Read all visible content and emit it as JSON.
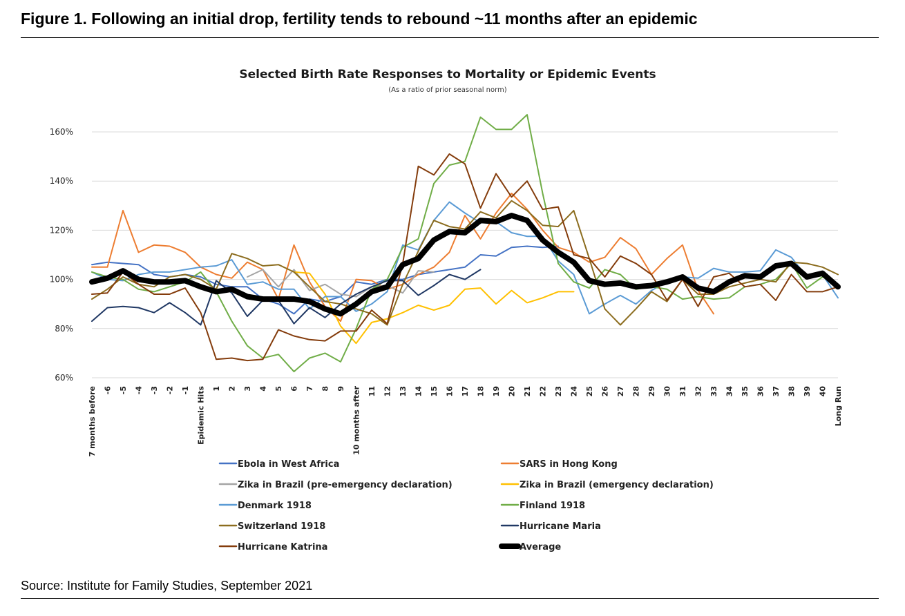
{
  "figure_title": "Figure 1. Following an initial drop, fertility tends to rebound ~11 months after an epidemic",
  "source": "Source: Institute for Family Studies, September 2021",
  "chart_data": {
    "type": "line",
    "title": "Selected Birth Rate Responses to Mortality or Epidemic Events",
    "subtitle": "(As a ratio of prior seasonal norm)",
    "xlabel": "",
    "ylabel": "",
    "ylim": [
      60,
      160
    ],
    "yticks": [
      "60%",
      "80%",
      "100%",
      "120%",
      "140%",
      "160%"
    ],
    "grid": true,
    "legend_position": "bottom",
    "categories": [
      "7 months before",
      "-6",
      "-5",
      "-4",
      "-3",
      "-2",
      "-1",
      "Epidemic Hits",
      "1",
      "2",
      "3",
      "4",
      "5",
      "6",
      "7",
      "8",
      "9",
      "10 months after",
      "11",
      "12",
      "13",
      "14",
      "15",
      "16",
      "17",
      "18",
      "19",
      "20",
      "21",
      "22",
      "23",
      "24",
      "25",
      "26",
      "27",
      "28",
      "29",
      "30",
      "31",
      "32",
      "33",
      "34",
      "35",
      "36",
      "37",
      "38",
      "39",
      "40",
      "Long Run"
    ],
    "series": [
      {
        "name": "Ebola in West Africa",
        "color": "#4472C4",
        "width": 2,
        "values": [
          106,
          107,
          106.5,
          106,
          102,
          101,
          102,
          101,
          98,
          97,
          97,
          92,
          90,
          86,
          92,
          91,
          93,
          99,
          98,
          100,
          100,
          102,
          103,
          104,
          105,
          110,
          109.5,
          113,
          113.5,
          113,
          113.5,
          null,
          null,
          null,
          null,
          null,
          null,
          null,
          null,
          null,
          null,
          null,
          null,
          null,
          null,
          null,
          null,
          null,
          null
        ]
      },
      {
        "name": "SARS in Hong Kong",
        "color": "#ED7D31",
        "width": 2,
        "values": [
          105,
          105,
          128,
          111,
          114,
          113.5,
          111,
          105,
          102,
          100.5,
          107,
          104,
          92,
          114,
          99,
          89,
          83,
          100,
          99.5,
          96,
          98,
          102,
          105,
          111,
          126,
          116.5,
          127,
          135,
          128.5,
          120,
          113,
          111,
          107,
          109,
          117,
          112.5,
          102,
          108.5,
          114,
          95.5,
          86,
          null,
          null,
          null,
          null,
          null,
          null,
          null,
          null
        ]
      },
      {
        "name": "Zika in Brazil  (pre-emergency declaration)",
        "color": "#A5A5A5",
        "width": 2,
        "values": [
          null,
          null,
          null,
          null,
          null,
          null,
          null,
          null,
          null,
          null,
          101,
          104,
          97,
          104,
          95.5,
          98,
          94,
          93,
          97,
          97.5,
          94.5,
          103.5,
          103,
          null,
          null,
          null,
          null,
          null,
          null,
          null,
          null,
          null,
          null,
          null,
          null,
          null,
          null,
          null,
          null,
          null,
          null,
          null,
          null,
          null,
          null,
          null,
          null,
          null,
          null
        ]
      },
      {
        "name": "Zika in Brazil (emergency declaration)",
        "color": "#FFC000",
        "width": 2,
        "values": [
          null,
          null,
          null,
          null,
          null,
          null,
          null,
          null,
          null,
          null,
          null,
          null,
          null,
          103,
          102.5,
          94,
          81,
          74,
          82.5,
          84,
          86.5,
          89.5,
          87.5,
          89.5,
          96,
          96.5,
          90,
          95.5,
          90.5,
          92.5,
          95,
          95,
          null,
          null,
          null,
          null,
          null,
          null,
          null,
          null,
          null,
          null,
          null,
          null,
          null,
          null,
          null,
          null,
          null
        ]
      },
      {
        "name": "Denmark 1918",
        "color": "#5B9BD5",
        "width": 2,
        "values": [
          103,
          100,
          99.5,
          102,
          103,
          103,
          104,
          105,
          105.5,
          108,
          98,
          99,
          96,
          96,
          88,
          93,
          93,
          87,
          90,
          95,
          114,
          112,
          124,
          131.5,
          127,
          123,
          123.5,
          119,
          117.5,
          117.5,
          107.5,
          102,
          86,
          90,
          93.5,
          90,
          95.5,
          99,
          101,
          100.5,
          104.5,
          103,
          103,
          103.5,
          112,
          109,
          101,
          102,
          92.5
        ]
      },
      {
        "name": "Finland 1918",
        "color": "#70AD47",
        "width": 2,
        "values": [
          103,
          101,
          100,
          96,
          95,
          97,
          99,
          103,
          95,
          83,
          73,
          68,
          69.5,
          62.5,
          68,
          70,
          66.5,
          80,
          96,
          100,
          113,
          116.5,
          139,
          146.5,
          148,
          166,
          161,
          161,
          167,
          135,
          106.5,
          99,
          96.5,
          104,
          102,
          96,
          97,
          96,
          92,
          93,
          92,
          92.5,
          97,
          98,
          100,
          106.5,
          96.5,
          101,
          98
        ]
      },
      {
        "name": "Switzerland 1918",
        "color": "#8C6D1F",
        "width": 2,
        "values": [
          92,
          96,
          101,
          98,
          97,
          101,
          102,
          100,
          96,
          110.5,
          108.5,
          105.5,
          106,
          103,
          97,
          91,
          90,
          88,
          86,
          81.5,
          98,
          111.5,
          124,
          121.5,
          120.5,
          127.5,
          125,
          132,
          128,
          122,
          121.5,
          128,
          108.5,
          88,
          81.5,
          88,
          95,
          91,
          100,
          94,
          94,
          97,
          98.5,
          100,
          99,
          107,
          106.5,
          105,
          102
        ]
      },
      {
        "name": "Hurricane Maria",
        "color": "#203864",
        "width": 2,
        "values": [
          83,
          88.5,
          89,
          88.5,
          86.5,
          90.5,
          86.5,
          81.5,
          99.5,
          94.5,
          85,
          91.5,
          91.5,
          82,
          88.5,
          84.5,
          90,
          94,
          97,
          99.5,
          99.5,
          93.5,
          97.5,
          102,
          100,
          104,
          null,
          null,
          null,
          null,
          null,
          null,
          null,
          null,
          null,
          null,
          null,
          null,
          null,
          null,
          null,
          null,
          null,
          null,
          null,
          null,
          null,
          null,
          null
        ]
      },
      {
        "name": "Hurricane Katrina",
        "color": "#843C0C",
        "width": 2,
        "values": [
          94,
          94.5,
          103,
          98,
          94,
          94,
          96.5,
          86.5,
          67.5,
          68,
          67,
          67.5,
          79.5,
          77,
          75.5,
          75,
          79,
          79,
          87.5,
          82,
          106.5,
          146,
          142.5,
          151,
          147,
          129,
          143,
          133.5,
          140,
          128.5,
          129.5,
          110,
          108.5,
          101,
          109.5,
          106.5,
          102,
          91.5,
          100,
          89,
          101,
          102.5,
          97,
          98,
          91.5,
          102,
          95,
          95,
          97
        ]
      },
      {
        "name": "Average",
        "color": "#000000",
        "width": 8,
        "values": [
          99,
          100.5,
          103.5,
          100,
          99,
          99,
          99.5,
          97,
          95,
          96,
          93,
          92,
          92,
          92,
          91,
          88,
          86,
          90,
          95,
          97,
          106,
          108.5,
          116,
          119.5,
          119,
          124,
          123.5,
          126,
          124,
          116,
          111,
          107,
          99.5,
          98,
          98.5,
          97,
          97.5,
          99,
          101,
          96.5,
          95,
          99,
          101.5,
          101,
          105.5,
          106.5,
          101,
          102.5,
          97
        ]
      }
    ]
  }
}
